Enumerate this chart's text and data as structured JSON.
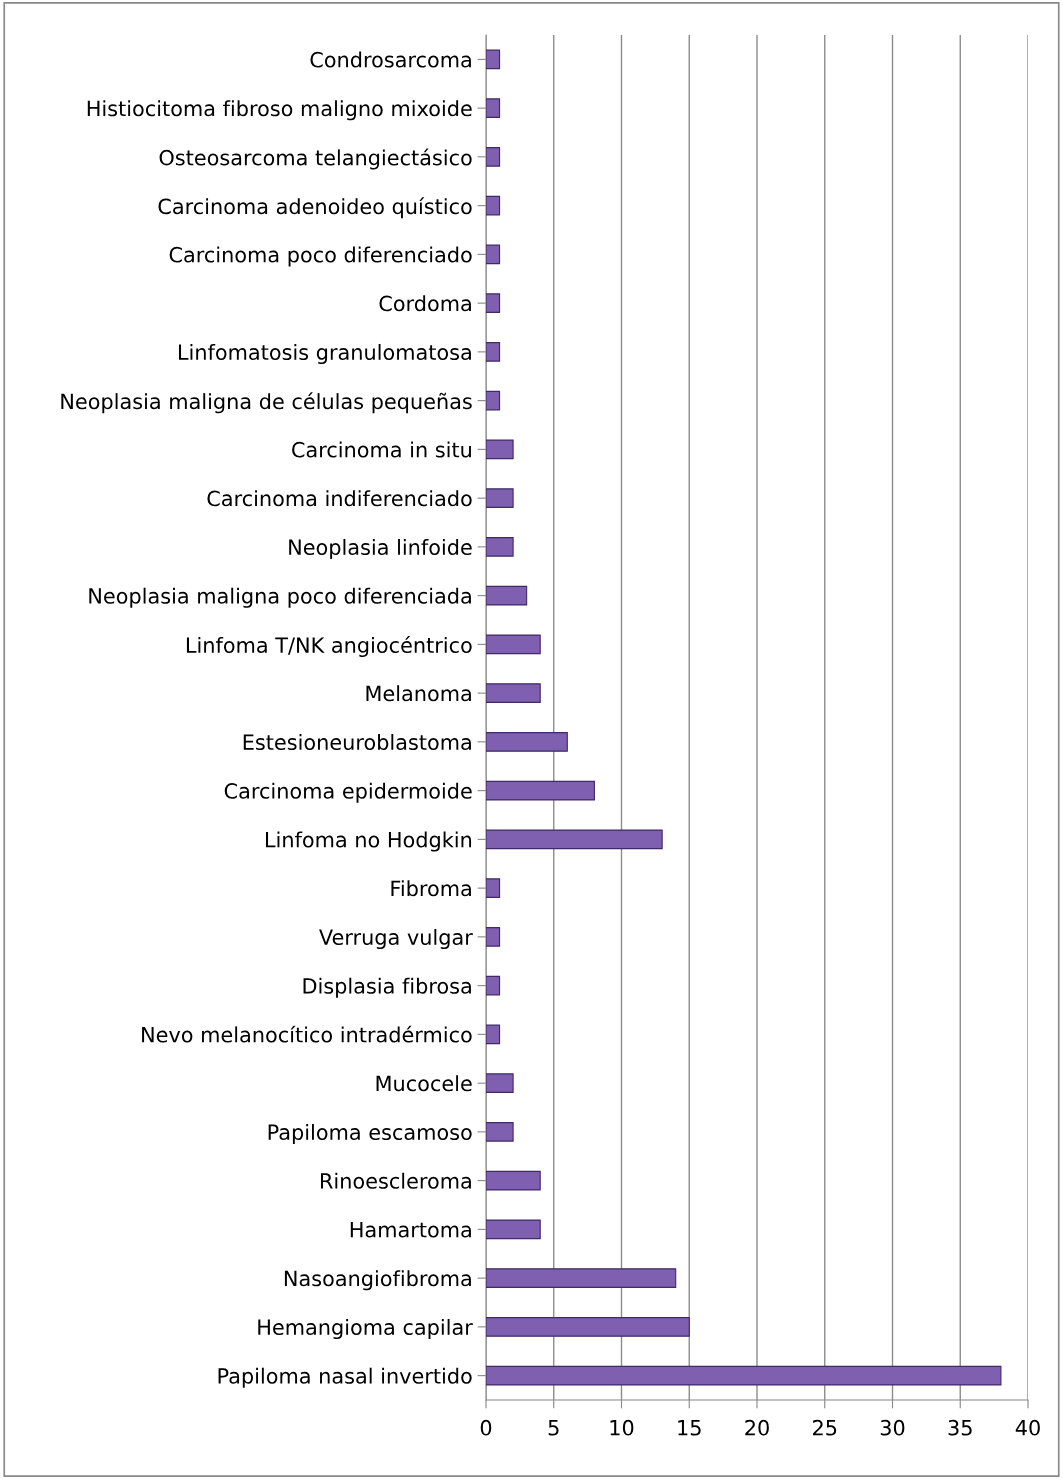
{
  "chart_data": {
    "type": "bar",
    "orientation": "horizontal",
    "categories": [
      "Condrosarcoma",
      "Histiocitoma fibroso maligno mixoide",
      "Osteosarcoma telangiectásico",
      "Carcinoma adenoideo quístico",
      "Carcinoma poco diferenciado",
      "Cordoma",
      "Linfomatosis granulomatosa",
      "Neoplasia maligna de células pequeñas",
      "Carcinoma in situ",
      "Carcinoma indiferenciado",
      "Neoplasia linfoide",
      "Neoplasia maligna poco diferenciada",
      "Linfoma T/NK angiocéntrico",
      "Melanoma",
      "Estesioneuroblastoma",
      "Carcinoma epidermoide",
      "Linfoma no Hodgkin",
      "Fibroma",
      "Verruga vulgar",
      "Displasia fibrosa",
      "Nevo melanocítico intradérmico",
      "Mucocele",
      "Papiloma escamoso",
      "Rinoescleroma",
      "Hamartoma",
      "Nasoangiofibroma",
      "Hemangioma capilar",
      "Papiloma nasal invertido"
    ],
    "values": [
      1,
      1,
      1,
      1,
      1,
      1,
      1,
      1,
      2,
      2,
      2,
      3,
      4,
      4,
      6,
      8,
      13,
      1,
      1,
      1,
      1,
      2,
      2,
      4,
      4,
      14,
      15,
      38
    ],
    "color": "#7e5fb0",
    "xlim": [
      0,
      40
    ],
    "xticks": [
      0,
      5,
      10,
      15,
      20,
      25,
      30,
      35,
      40
    ],
    "grid": "x"
  }
}
